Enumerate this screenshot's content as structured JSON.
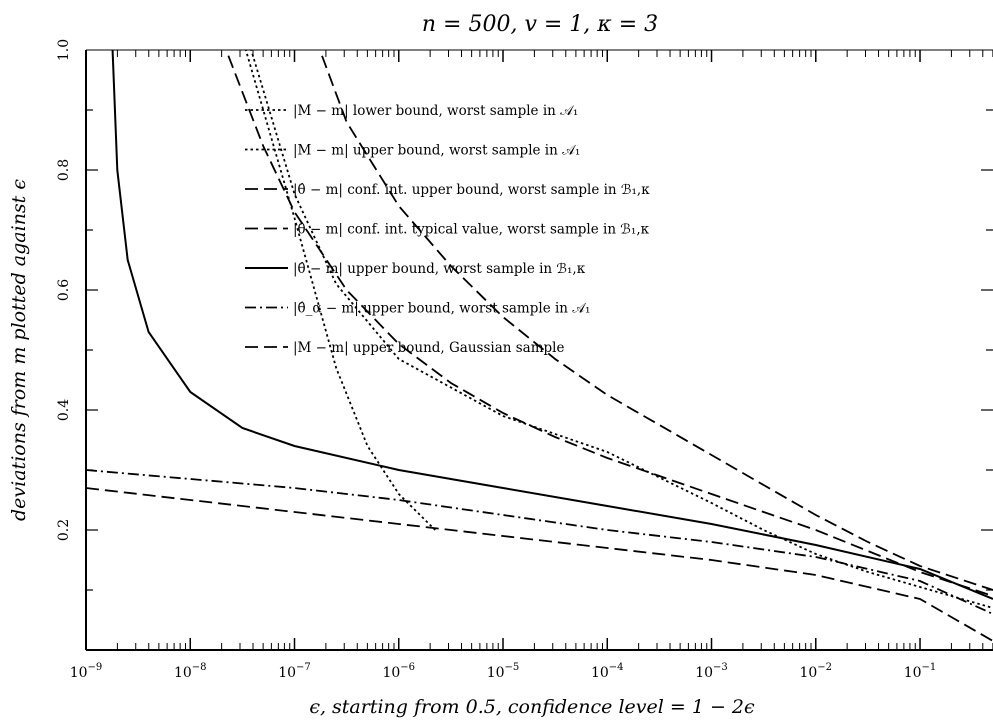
{
  "chart_data": {
    "type": "line",
    "title": "n = 500, v = 1, κ = 3",
    "xlabel": "ϵ, starting from 0.5, confidence level = 1 − 2ϵ",
    "ylabel": "deviations from m plotted against ϵ",
    "x_scale": "log",
    "x_exponent_range": [
      -9,
      -0.3
    ],
    "ylim": [
      0,
      1.0
    ],
    "xtick_labels": [
      {
        "base": "10",
        "exp": "−9"
      },
      {
        "base": "10",
        "exp": "−8"
      },
      {
        "base": "10",
        "exp": "−7"
      },
      {
        "base": "10",
        "exp": "−6"
      },
      {
        "base": "10",
        "exp": "−5"
      },
      {
        "base": "10",
        "exp": "−4"
      },
      {
        "base": "10",
        "exp": "−3"
      },
      {
        "base": "10",
        "exp": "−2"
      },
      {
        "base": "10",
        "exp": "−1"
      }
    ],
    "ytick_labels": [
      "0.2",
      "0.4",
      "0.6",
      "0.8",
      "1.0"
    ],
    "legend_position": "upper-center",
    "series": [
      {
        "name": "|M − m| lower bound, worst sample in 𝒜₁",
        "style": "dotted",
        "points": [
          [
            -7.5,
            1.02
          ],
          [
            -7.0,
            0.72
          ],
          [
            -6.6,
            0.47
          ],
          [
            -6.3,
            0.34
          ],
          [
            -6.0,
            0.26
          ],
          [
            -5.65,
            0.2
          ]
        ]
      },
      {
        "name": "|M − m| upper bound, worst sample in 𝒜₁",
        "style": "dotted",
        "points": [
          [
            -7.45,
            1.02
          ],
          [
            -7.0,
            0.76
          ],
          [
            -6.6,
            0.61
          ],
          [
            -6.0,
            0.485
          ],
          [
            -5.0,
            0.39
          ],
          [
            -4.0,
            0.33
          ],
          [
            -3.0,
            0.245
          ],
          [
            -2.5,
            0.2
          ],
          [
            -2.0,
            0.16
          ],
          [
            -1.5,
            0.13
          ],
          [
            -1.0,
            0.105
          ],
          [
            -0.3,
            0.07
          ]
        ]
      },
      {
        "name": "|θ̂ − m| conf. int. upper bound, worst sample in ℬ₁,κ",
        "style": "longdash",
        "points": [
          [
            -6.8,
            1.02
          ],
          [
            -6.5,
            0.88
          ],
          [
            -6.0,
            0.74
          ],
          [
            -5.5,
            0.64
          ],
          [
            -5.0,
            0.555
          ],
          [
            -4.5,
            0.485
          ],
          [
            -4.0,
            0.425
          ],
          [
            -3.5,
            0.375
          ],
          [
            -3.0,
            0.325
          ],
          [
            -2.5,
            0.275
          ],
          [
            -2.0,
            0.225
          ],
          [
            -1.5,
            0.18
          ],
          [
            -1.0,
            0.14
          ],
          [
            -0.3,
            0.1
          ]
        ]
      },
      {
        "name": "|θ̂ − m| conf. int. typical value, worst sample in ℬ₁,κ",
        "style": "longdash",
        "points": [
          [
            -7.7,
            1.02
          ],
          [
            -7.3,
            0.84
          ],
          [
            -7.0,
            0.73
          ],
          [
            -6.5,
            0.6
          ],
          [
            -6.0,
            0.51
          ],
          [
            -5.5,
            0.445
          ],
          [
            -5.0,
            0.395
          ],
          [
            -4.5,
            0.355
          ],
          [
            -4.0,
            0.32
          ],
          [
            -3.5,
            0.29
          ],
          [
            -3.0,
            0.26
          ],
          [
            -2.5,
            0.23
          ],
          [
            -2.0,
            0.2
          ],
          [
            -1.5,
            0.165
          ],
          [
            -1.0,
            0.13
          ],
          [
            -0.3,
            0.09
          ]
        ]
      },
      {
        "name": "|θ̂ − m| upper bound, worst sample in ℬ₁,κ",
        "style": "solid",
        "points": [
          [
            -8.75,
            1.02
          ],
          [
            -8.7,
            0.8
          ],
          [
            -8.6,
            0.65
          ],
          [
            -8.4,
            0.53
          ],
          [
            -8.0,
            0.43
          ],
          [
            -7.5,
            0.37
          ],
          [
            -7.0,
            0.34
          ],
          [
            -6.0,
            0.3
          ],
          [
            -5.0,
            0.27
          ],
          [
            -4.0,
            0.24
          ],
          [
            -3.0,
            0.21
          ],
          [
            -2.0,
            0.175
          ],
          [
            -1.0,
            0.135
          ],
          [
            -0.3,
            0.085
          ]
        ]
      },
      {
        "name": "|θ̂_α − m| upper bound, worst sample in 𝒜₁",
        "style": "dashdot",
        "points": [
          [
            -9.0,
            0.3
          ],
          [
            -8.0,
            0.285
          ],
          [
            -7.0,
            0.27
          ],
          [
            -6.0,
            0.25
          ],
          [
            -5.0,
            0.225
          ],
          [
            -4.0,
            0.2
          ],
          [
            -3.0,
            0.18
          ],
          [
            -2.0,
            0.155
          ],
          [
            -1.0,
            0.115
          ],
          [
            -0.3,
            0.06
          ]
        ]
      },
      {
        "name": "|M − m| upper bound, Gaussian sample",
        "style": "longdash",
        "points": [
          [
            -9.0,
            0.27
          ],
          [
            -8.0,
            0.25
          ],
          [
            -7.0,
            0.23
          ],
          [
            -6.0,
            0.21
          ],
          [
            -5.0,
            0.19
          ],
          [
            -4.0,
            0.17
          ],
          [
            -3.0,
            0.15
          ],
          [
            -2.0,
            0.125
          ],
          [
            -1.0,
            0.085
          ],
          [
            -0.3,
            0.015
          ]
        ]
      }
    ]
  }
}
